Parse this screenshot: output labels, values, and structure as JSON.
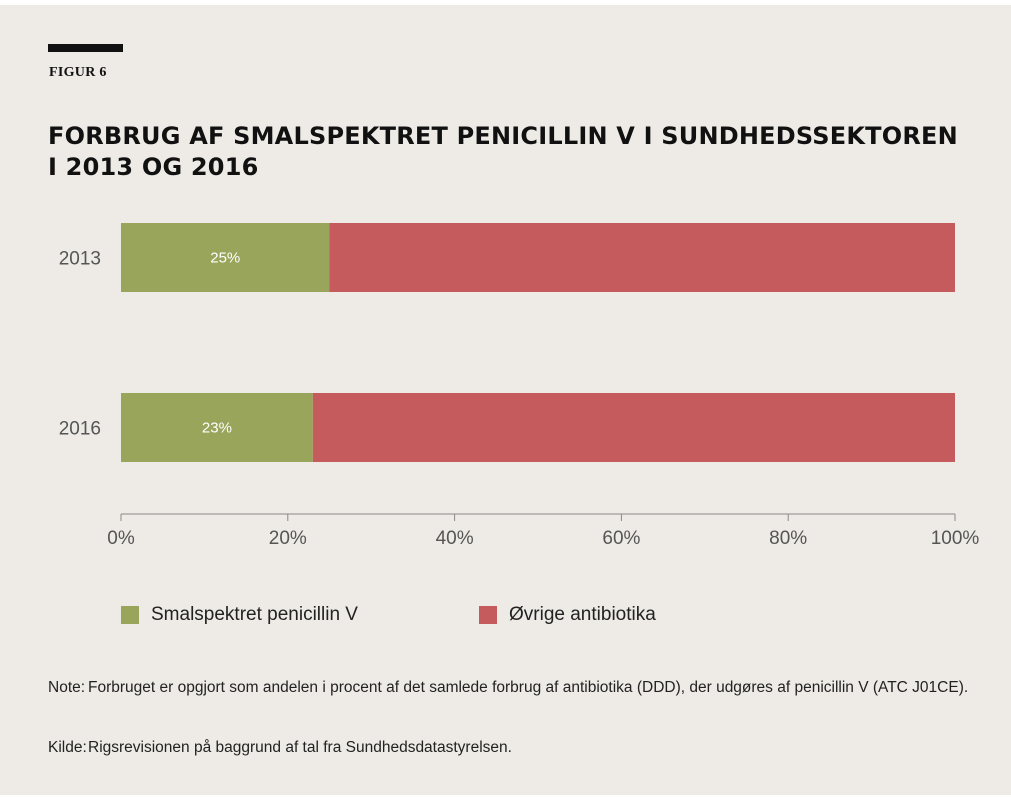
{
  "figure_label": "FIGUR 6",
  "title": "FORBRUG AF SMALSPEKTRET PENICILLIN V I SUNDHEDSSEKTOREN I 2013 OG 2016",
  "chart_data": {
    "type": "bar",
    "orientation": "horizontal",
    "stacked": true,
    "categories": [
      "2013",
      "2016"
    ],
    "series": [
      {
        "name": "Smalspektret penicillin V",
        "values": [
          25,
          23
        ],
        "labels": [
          "25%",
          "23%"
        ],
        "color": "#98a55a"
      },
      {
        "name": "Øvrige antibiotika",
        "values": [
          75,
          77
        ],
        "color": "#c65b5e"
      }
    ],
    "xlim": [
      0,
      100
    ],
    "xticks": [
      "0%",
      "20%",
      "40%",
      "60%",
      "80%",
      "100%"
    ],
    "grid": false,
    "legend_position": "bottom"
  },
  "legend": [
    {
      "label": "Smalspektret penicillin V",
      "color": "#98a55a"
    },
    {
      "label": "Øvrige antibiotika",
      "color": "#c65b5e"
    }
  ],
  "note": {
    "label": "Note:",
    "text": "Forbruget er opgjort som andelen i procent af det samlede forbrug af antibiotika (DDD), der udgøres af penicillin V (ATC J01CE)."
  },
  "source": {
    "label": "Kilde:",
    "text": "Rigsrevisionen på baggrund af tal fra Sundhedsdatastyrelsen."
  },
  "colors": {
    "background": "#eeebe6",
    "axis": "#888888"
  }
}
